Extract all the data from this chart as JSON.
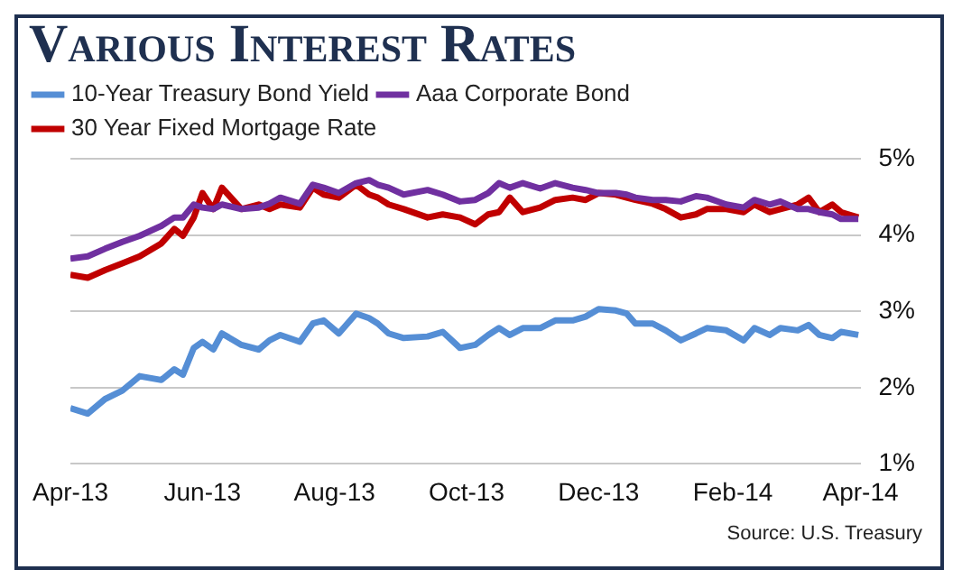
{
  "chart_data": {
    "type": "line",
    "title": "Various Interest Rates",
    "x": [
      "2013-04-01",
      "2013-04-09",
      "2013-04-17",
      "2013-04-25",
      "2013-05-03",
      "2013-05-13",
      "2013-05-19",
      "2013-05-23",
      "2013-05-28",
      "2013-06-01",
      "2013-06-06",
      "2013-06-10",
      "2013-06-19",
      "2013-06-27",
      "2013-07-02",
      "2013-07-07",
      "2013-07-16",
      "2013-07-22",
      "2013-07-27",
      "2013-08-03",
      "2013-08-11",
      "2013-08-17",
      "2013-08-21",
      "2013-08-26",
      "2013-09-02",
      "2013-09-13",
      "2013-09-20",
      "2013-09-28",
      "2013-10-05",
      "2013-10-11",
      "2013-10-16",
      "2013-10-21",
      "2013-10-27",
      "2013-11-04",
      "2013-11-11",
      "2013-11-19",
      "2013-11-25",
      "2013-12-01",
      "2013-12-09",
      "2013-12-14",
      "2013-12-18",
      "2013-12-26",
      "2014-01-01",
      "2014-01-08",
      "2014-01-15",
      "2014-01-20",
      "2014-01-29",
      "2014-02-06",
      "2014-02-11",
      "2014-02-18",
      "2014-02-23",
      "2014-03-03",
      "2014-03-08",
      "2014-03-13",
      "2014-03-19",
      "2014-03-23",
      "2014-03-31"
    ],
    "series": [
      {
        "name": "10-Year Treasury Bond Yield",
        "color": "#558ed5",
        "values": [
          1.73,
          1.66,
          1.85,
          1.96,
          2.15,
          2.1,
          2.24,
          2.17,
          2.52,
          2.6,
          2.5,
          2.71,
          2.56,
          2.5,
          2.62,
          2.69,
          2.6,
          2.84,
          2.88,
          2.71,
          2.97,
          2.91,
          2.84,
          2.71,
          2.65,
          2.67,
          2.73,
          2.52,
          2.56,
          2.69,
          2.78,
          2.69,
          2.78,
          2.78,
          2.88,
          2.88,
          2.93,
          3.03,
          3.01,
          2.97,
          2.84,
          2.84,
          2.75,
          2.62,
          2.71,
          2.78,
          2.75,
          2.62,
          2.78,
          2.69,
          2.78,
          2.75,
          2.82,
          2.69,
          2.65,
          2.73,
          2.69
        ]
      },
      {
        "name": "Aaa Corporate Bond",
        "color": "#7030a0",
        "values": [
          3.69,
          3.72,
          3.82,
          3.91,
          3.99,
          4.12,
          4.23,
          4.23,
          4.4,
          4.36,
          4.34,
          4.4,
          4.34,
          4.36,
          4.41,
          4.49,
          4.41,
          4.66,
          4.62,
          4.55,
          4.68,
          4.72,
          4.66,
          4.62,
          4.53,
          4.59,
          4.53,
          4.44,
          4.46,
          4.55,
          4.68,
          4.62,
          4.68,
          4.61,
          4.68,
          4.62,
          4.59,
          4.55,
          4.55,
          4.53,
          4.49,
          4.46,
          4.46,
          4.44,
          4.51,
          4.49,
          4.4,
          4.36,
          4.46,
          4.4,
          4.44,
          4.34,
          4.34,
          4.3,
          4.27,
          4.21,
          4.21
        ]
      },
      {
        "name": "30 Year Fixed Mortgage Rate",
        "color": "#c00000",
        "values": [
          3.48,
          3.44,
          3.54,
          3.63,
          3.72,
          3.89,
          4.08,
          3.99,
          4.23,
          4.55,
          4.34,
          4.62,
          4.34,
          4.4,
          4.34,
          4.4,
          4.36,
          4.62,
          4.53,
          4.49,
          4.66,
          4.53,
          4.49,
          4.4,
          4.34,
          4.23,
          4.27,
          4.23,
          4.14,
          4.27,
          4.3,
          4.49,
          4.3,
          4.36,
          4.46,
          4.49,
          4.46,
          4.55,
          4.53,
          4.49,
          4.46,
          4.41,
          4.34,
          4.23,
          4.27,
          4.34,
          4.34,
          4.3,
          4.4,
          4.3,
          4.34,
          4.4,
          4.49,
          4.3,
          4.4,
          4.3,
          4.23
        ]
      }
    ],
    "xlim": [
      "2013-04-01",
      "2014-04-01"
    ],
    "xticks": [
      {
        "value": "2013-04-01",
        "label": "Apr-13"
      },
      {
        "value": "2013-06-01",
        "label": "Jun-13"
      },
      {
        "value": "2013-08-01",
        "label": "Aug-13"
      },
      {
        "value": "2013-10-01",
        "label": "Oct-13"
      },
      {
        "value": "2013-12-01",
        "label": "Dec-13"
      },
      {
        "value": "2014-02-01",
        "label": "Feb-14"
      },
      {
        "value": "2014-04-01",
        "label": "Apr-14"
      }
    ],
    "ylim": [
      1,
      5
    ],
    "yticks": [
      {
        "value": 1,
        "label": "1%"
      },
      {
        "value": 2,
        "label": "2%"
      },
      {
        "value": 3,
        "label": "3%"
      },
      {
        "value": 4,
        "label": "4%"
      },
      {
        "value": 5,
        "label": "5%"
      }
    ],
    "grid": "y",
    "legend": "top left",
    "marker": "none",
    "line_style": "solid",
    "annotations": [
      "Source:  U.S. Treasury"
    ]
  }
}
